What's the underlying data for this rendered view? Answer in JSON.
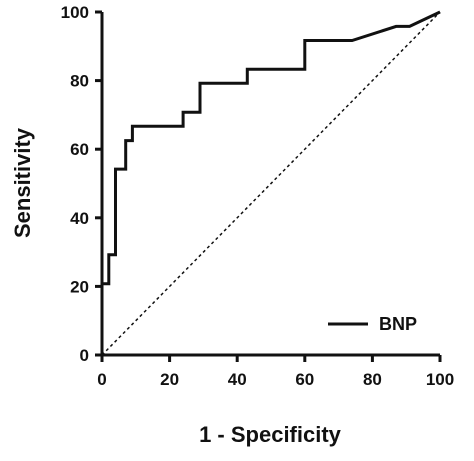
{
  "chart_data": {
    "type": "line",
    "title": "",
    "xlabel": "1 - Specificity",
    "ylabel": "Sensitivity",
    "xlim": [
      0,
      100
    ],
    "ylim": [
      0,
      100
    ],
    "xticks": [
      0,
      20,
      40,
      60,
      80,
      100
    ],
    "yticks": [
      0,
      20,
      40,
      60,
      80,
      100
    ],
    "legend_position": "bottom-right",
    "series": [
      {
        "name": "BNP",
        "style": "solid",
        "color": "#111111",
        "x": [
          0,
          2,
          2,
          4,
          4,
          7,
          7,
          9,
          9,
          24,
          24,
          26,
          26,
          29,
          29,
          43,
          43,
          60,
          60,
          74,
          87,
          91,
          100
        ],
        "y": [
          20.8,
          20.8,
          29.2,
          29.2,
          54.2,
          54.2,
          62.5,
          62.5,
          66.7,
          66.7,
          70.8,
          70.8,
          70.8,
          70.8,
          79.2,
          79.2,
          83.3,
          83.3,
          91.7,
          91.7,
          95.8,
          95.8,
          100
        ]
      }
    ],
    "reference_line": {
      "style": "dashed",
      "x": [
        0,
        100
      ],
      "y": [
        0,
        100
      ]
    }
  }
}
